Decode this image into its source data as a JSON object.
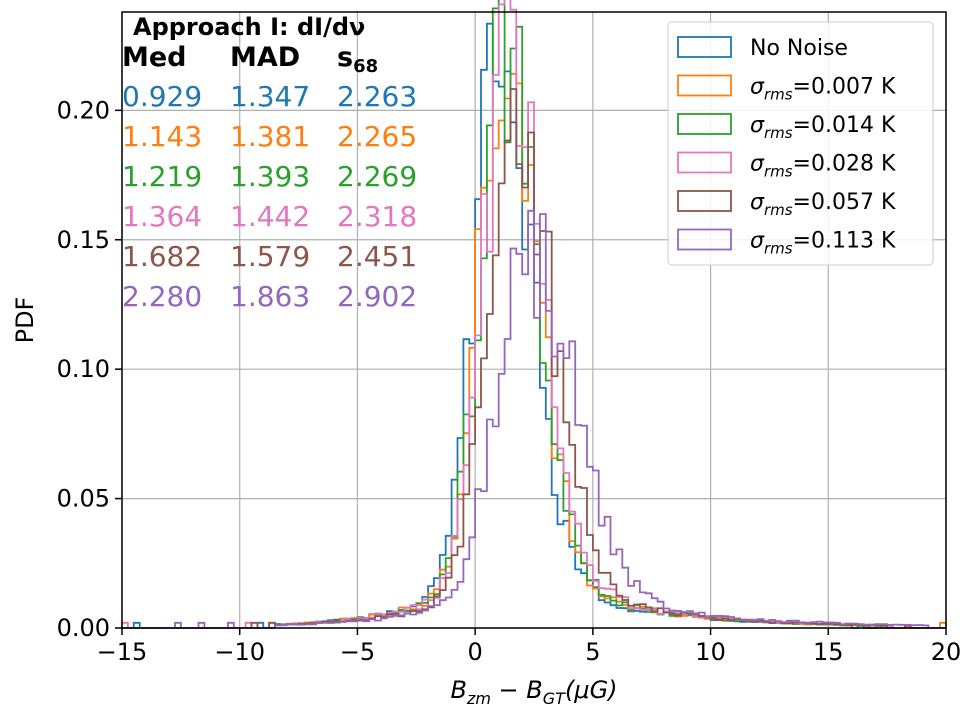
{
  "chart_data": {
    "type": "histogram",
    "xlabel_main": "B",
    "xlabel_sub1": "zm",
    "xlabel_minus": " − ",
    "xlabel_main2": "B",
    "xlabel_sub2": "GT",
    "xlabel_unit": "(μG)",
    "ylabel": "PDF",
    "xlim": [
      -15,
      20
    ],
    "ylim": [
      0,
      0.238
    ],
    "xticks": [
      -15,
      -10,
      -5,
      0,
      5,
      10,
      15,
      20
    ],
    "xtick_labels": [
      "−15",
      "−10",
      "−5",
      "0",
      "5",
      "10",
      "15",
      "20"
    ],
    "yticks": [
      0.0,
      0.05,
      0.1,
      0.15,
      0.2
    ],
    "ytick_labels": [
      "0.00",
      "0.05",
      "0.10",
      "0.15",
      "0.20"
    ],
    "grid": true,
    "bin_width": 0.25,
    "annotation": {
      "title": "Approach I: dI/dν",
      "headers": [
        "Med",
        "MAD",
        "s"
      ],
      "header_sub": "68",
      "rows": [
        {
          "values": [
            "0.929",
            "1.347",
            "2.263"
          ],
          "color": "#1f77b4"
        },
        {
          "values": [
            "1.143",
            "1.381",
            "2.265"
          ],
          "color": "#ff7f0e"
        },
        {
          "values": [
            "1.219",
            "1.393",
            "2.269"
          ],
          "color": "#2ca02c"
        },
        {
          "values": [
            "1.364",
            "1.442",
            "2.318"
          ],
          "color": "#e377c2"
        },
        {
          "values": [
            "1.682",
            "1.579",
            "2.451"
          ],
          "color": "#8c564b"
        },
        {
          "values": [
            "2.280",
            "1.863",
            "2.902"
          ],
          "color": "#9467bd"
        }
      ]
    },
    "series": [
      {
        "name": "No Noise",
        "legend_parts": [
          "No Noise"
        ],
        "color": "#1f77b4",
        "median": 0.929,
        "mad": 1.347,
        "s68": 2.263,
        "peak": 0.226
      },
      {
        "name": "σrms=0.007 K",
        "legend_parts": [
          "σ",
          "rms",
          "=0.007 K"
        ],
        "color": "#ff7f0e",
        "median": 1.143,
        "mad": 1.381,
        "s68": 2.265,
        "peak": 0.225
      },
      {
        "name": "σrms=0.014 K",
        "legend_parts": [
          "σ",
          "rms",
          "=0.014 K"
        ],
        "color": "#2ca02c",
        "median": 1.219,
        "mad": 1.393,
        "s68": 2.269,
        "peak": 0.224
      },
      {
        "name": "σrms=0.028 K",
        "legend_parts": [
          "σ",
          "rms",
          "=0.028 K"
        ],
        "color": "#e377c2",
        "median": 1.364,
        "mad": 1.442,
        "s68": 2.318,
        "peak": 0.226
      },
      {
        "name": "σrms=0.057 K",
        "legend_parts": [
          "σ",
          "rms",
          "=0.057 K"
        ],
        "color": "#8c564b",
        "median": 1.682,
        "mad": 1.579,
        "s68": 2.451,
        "peak": 0.188
      },
      {
        "name": "σrms=0.113 K",
        "legend_parts": [
          "σ",
          "rms",
          "=0.113 K"
        ],
        "color": "#9467bd",
        "median": 2.28,
        "mad": 1.863,
        "s68": 2.902,
        "peak": 0.145
      }
    ]
  }
}
